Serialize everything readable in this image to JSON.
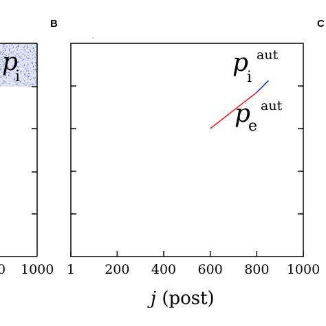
{
  "panel_b": {
    "letter": "B"
  },
  "panel_c": {
    "letter": "C"
  },
  "left_panel": {
    "tick_labels": [
      "0",
      "1000"
    ],
    "annotation": {
      "main": "p",
      "sub": "i"
    }
  },
  "chart_data": {
    "type": "line",
    "xlabel": "j (post)",
    "xlabel_italic_part": "j",
    "xlabel_rest": " (post)",
    "xlim": [
      1,
      1000
    ],
    "x_ticks": [
      1,
      200,
      400,
      600,
      800,
      1000
    ],
    "x_tick_labels": [
      "1",
      "200",
      "400",
      "600",
      "800",
      "1000"
    ],
    "ylim": [
      0,
      1000
    ],
    "y_ticks": [
      200,
      400,
      600,
      800
    ],
    "grid": false,
    "series": [
      {
        "name": "p_e^aut",
        "color": "#dd2222",
        "x": [
          600,
          800
        ],
        "y": [
          600,
          770
        ]
      },
      {
        "name": "p_i^aut",
        "color": "#2233cc",
        "x": [
          800,
          850
        ],
        "y": [
          770,
          825
        ]
      }
    ],
    "annotations": [
      {
        "main": "p",
        "sub": "i",
        "sup": "aut"
      },
      {
        "main": "p",
        "sub": "e",
        "sup": "aut"
      }
    ]
  }
}
